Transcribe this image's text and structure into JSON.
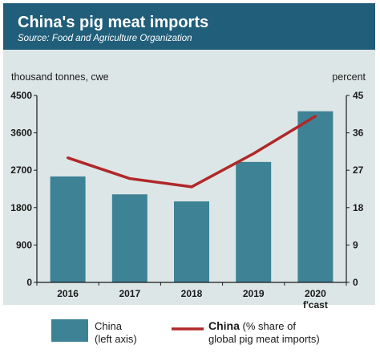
{
  "header": {
    "title": "China's pig meat imports",
    "subtitle": "Source: Food and Agriculture Organization"
  },
  "colors": {
    "header_bg": "#215e7a",
    "plot_bg": "#dde6e6",
    "bar": "#3e8296",
    "line": "#b0282a"
  },
  "chart_data": {
    "type": "bar",
    "categories": [
      "2016",
      "2017",
      "2018",
      "2019",
      "2020"
    ],
    "category_sublabels": [
      "",
      "",
      "",
      "",
      "f'cast"
    ],
    "series": [
      {
        "name": "China",
        "type": "bar",
        "axis": "left",
        "values": [
          2550,
          2120,
          1950,
          2900,
          4120
        ]
      },
      {
        "name": "China",
        "type": "line",
        "axis": "right",
        "values": [
          30,
          25,
          23,
          31,
          40
        ]
      }
    ],
    "ylabel": "thousand tonnes, cwe",
    "y2label": "percent",
    "ylim": [
      0,
      4500
    ],
    "y2lim": [
      0,
      45
    ],
    "yticks": [
      "0",
      "900",
      "1800",
      "2700",
      "3600",
      "4500"
    ],
    "y2ticks": [
      "0",
      "9",
      "18",
      "27",
      "36",
      "45"
    ],
    "grid": false,
    "legend": {
      "placement": "bottom",
      "bar_label_line1": "China",
      "bar_label_line2": "(left axis)",
      "line_label_line1_bold": "China",
      "line_label_line1_rest": " (% share of",
      "line_label_line2": "global pig meat imports)"
    }
  }
}
